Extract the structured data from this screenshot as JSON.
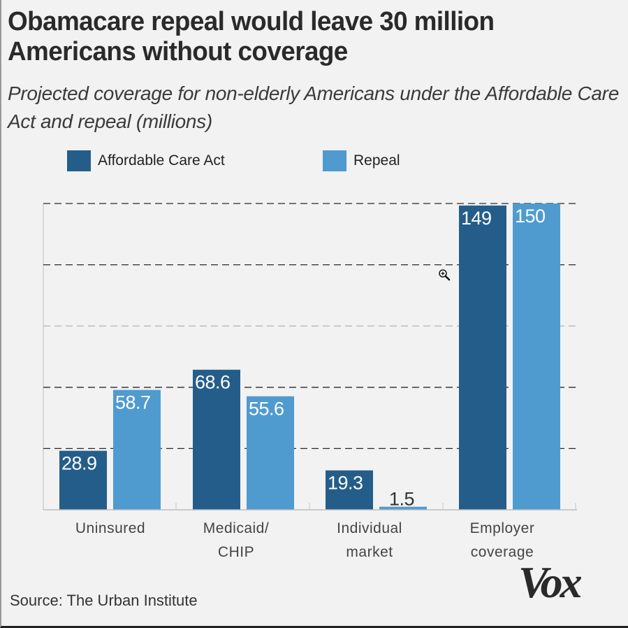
{
  "header": {
    "title": "Obamacare repeal would leave 30 million Americans without coverage",
    "subtitle": "Projected coverage for non-elderly Americans under the Affordable Care Act and repeal (millions)"
  },
  "colors": {
    "aca": "#245d8a",
    "repeal": "#4f9bd0",
    "background": "#f2f2f2"
  },
  "footer": {
    "source": "Source: The Urban Institute",
    "logo": "Vox"
  },
  "cursor": {
    "icon": "zoom-in-cursor-icon"
  },
  "chart_data": {
    "type": "bar",
    "title": "Obamacare repeal would leave 30 million Americans without coverage",
    "subtitle": "Projected coverage for non-elderly Americans under the Affordable Care Act and repeal (millions)",
    "xlabel": "",
    "ylabel": "",
    "categories": [
      [
        "Uninsured"
      ],
      [
        "Medicaid/",
        "CHIP"
      ],
      [
        "Individual",
        "market"
      ],
      [
        "Employer",
        "coverage"
      ]
    ],
    "series": [
      {
        "name": "Affordable Care Act",
        "values": [
          28.9,
          68.6,
          19.3,
          149
        ],
        "labels": [
          "28.9",
          "68.6",
          "19.3",
          "149"
        ],
        "color": "#245d8a"
      },
      {
        "name": "Repeal",
        "values": [
          58.7,
          55.6,
          1.5,
          150
        ],
        "labels": [
          "58.7",
          "55.6",
          "1.5",
          "150"
        ],
        "color": "#4f9bd0"
      }
    ],
    "ylim": [
      0,
      150
    ],
    "gridlines": [
      30,
      60,
      90,
      120,
      150
    ],
    "grid": true,
    "legend": "top-left",
    "source": "Source: The Urban Institute"
  }
}
